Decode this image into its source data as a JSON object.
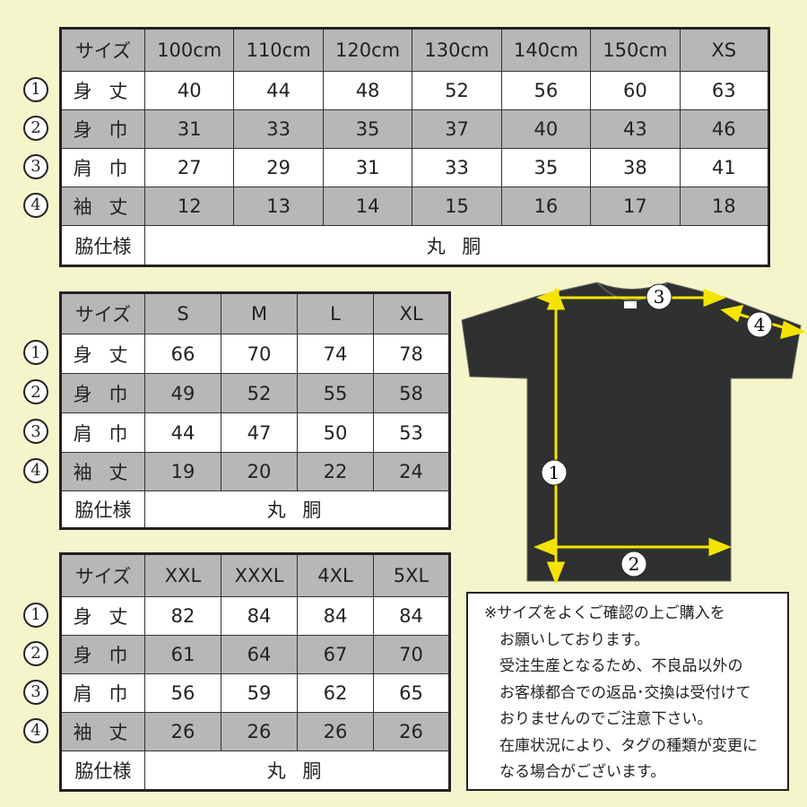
{
  "tables": [
    {
      "header": [
        "サイズ",
        "100cm",
        "110cm",
        "120cm",
        "130cm",
        "140cm",
        "150cm",
        "XS"
      ],
      "rows": [
        {
          "num": "1",
          "label": "身 丈",
          "values": [
            "40",
            "44",
            "48",
            "52",
            "56",
            "60",
            "63"
          ]
        },
        {
          "num": "2",
          "label": "身 巾",
          "values": [
            "31",
            "33",
            "35",
            "37",
            "40",
            "43",
            "46"
          ]
        },
        {
          "num": "3",
          "label": "肩 巾",
          "values": [
            "27",
            "29",
            "31",
            "33",
            "35",
            "38",
            "41"
          ]
        },
        {
          "num": "4",
          "label": "袖 丈",
          "values": [
            "12",
            "13",
            "14",
            "15",
            "16",
            "17",
            "18"
          ]
        }
      ],
      "side_label": "脇仕様",
      "side_value": "丸 胴"
    },
    {
      "header": [
        "サイズ",
        "S",
        "M",
        "L",
        "XL"
      ],
      "rows": [
        {
          "num": "1",
          "label": "身 丈",
          "values": [
            "66",
            "70",
            "74",
            "78"
          ]
        },
        {
          "num": "2",
          "label": "身 巾",
          "values": [
            "49",
            "52",
            "55",
            "58"
          ]
        },
        {
          "num": "3",
          "label": "肩 巾",
          "values": [
            "44",
            "47",
            "50",
            "53"
          ]
        },
        {
          "num": "4",
          "label": "袖 丈",
          "values": [
            "19",
            "20",
            "22",
            "24"
          ]
        }
      ],
      "side_label": "脇仕様",
      "side_value": "丸 胴"
    },
    {
      "header": [
        "サイズ",
        "XXL",
        "XXXL",
        "4XL",
        "5XL"
      ],
      "rows": [
        {
          "num": "1",
          "label": "身 丈",
          "values": [
            "82",
            "84",
            "84",
            "84"
          ]
        },
        {
          "num": "2",
          "label": "身 巾",
          "values": [
            "61",
            "64",
            "67",
            "70"
          ]
        },
        {
          "num": "3",
          "label": "肩 巾",
          "values": [
            "56",
            "59",
            "62",
            "65"
          ]
        },
        {
          "num": "4",
          "label": "袖 丈",
          "values": [
            "26",
            "26",
            "26",
            "26"
          ]
        }
      ],
      "side_label": "脇仕様",
      "side_value": "丸 胴"
    }
  ],
  "diagram": {
    "markers": [
      "1",
      "2",
      "3",
      "4"
    ],
    "shirt_color": "#2f3130",
    "arrow_color": "#f5e400"
  },
  "note": [
    "※サイズをよくご確認の上ご購入を",
    "　お願いしております。",
    "　受注生産となるため、不良品以外の",
    "　お客様都合での返品･交換は受付けて",
    "　おりませんのでご注意下さい。",
    "　在庫状況により、タグの種類が変更に",
    "　なる場合がございます。"
  ]
}
